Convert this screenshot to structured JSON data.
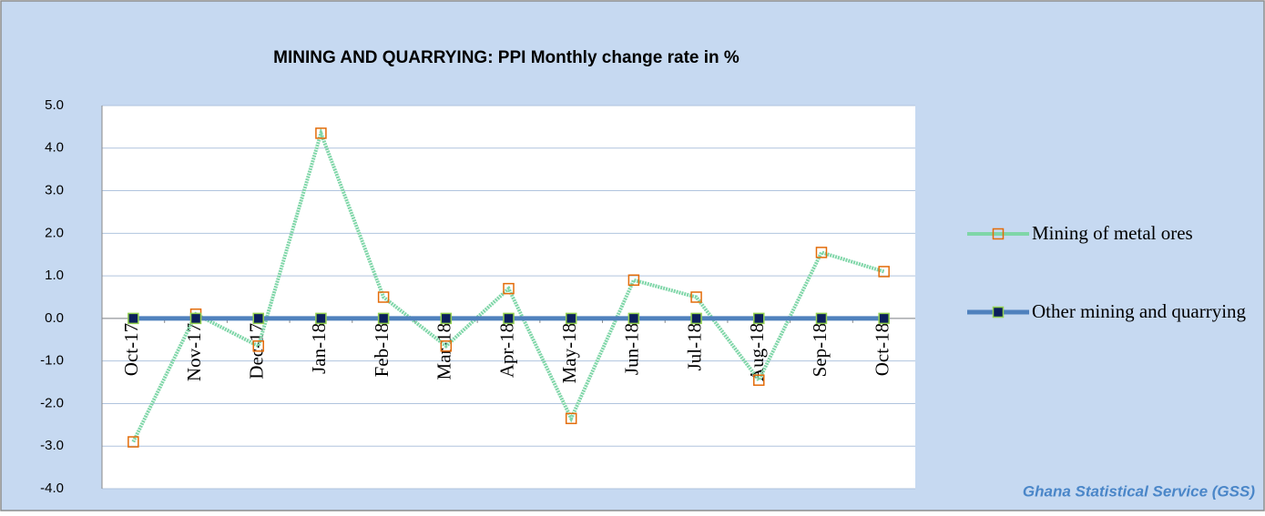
{
  "chart_data": {
    "type": "line",
    "title": "MINING AND QUARRYING:  PPI  Monthly change rate  in %",
    "source": "Ghana Statistical Service (GSS)",
    "categories": [
      "Oct-17",
      "Nov-17",
      "Dec-17",
      "Jan-18",
      "Feb-18",
      "Mar-18",
      "Apr-18",
      "May-18",
      "Jun-18",
      "Jul-18",
      "Aug-18",
      "Sep-18",
      "Oct-18"
    ],
    "series": [
      {
        "name": "Mining of metal ores",
        "color": "#7fd6a8",
        "marker_color": "#e36c09",
        "values": [
          -2.9,
          0.1,
          -0.65,
          4.35,
          0.5,
          -0.65,
          0.7,
          -2.35,
          0.9,
          0.5,
          -1.45,
          1.55,
          1.1
        ]
      },
      {
        "name": "Other mining and quarrying",
        "color": "#4f81bd",
        "marker_color": "#0b1f5c",
        "values": [
          0,
          0,
          0,
          0,
          0,
          0,
          0,
          0,
          0,
          0,
          0,
          0,
          0
        ]
      }
    ],
    "ylim": [
      -4,
      5
    ],
    "yticks": [
      {
        "value": -4,
        "label": "-4.0"
      },
      {
        "value": -3,
        "label": "-3.0"
      },
      {
        "value": -2,
        "label": "-2.0"
      },
      {
        "value": -1,
        "label": "-1.0"
      },
      {
        "value": 0,
        "label": "0.0"
      },
      {
        "value": 1,
        "label": "1.0"
      },
      {
        "value": 2,
        "label": "2.0"
      },
      {
        "value": 3,
        "label": "3.0"
      },
      {
        "value": 4,
        "label": "4.0"
      },
      {
        "value": 5,
        "label": "5.0"
      }
    ],
    "grid": true,
    "legend": "right"
  }
}
